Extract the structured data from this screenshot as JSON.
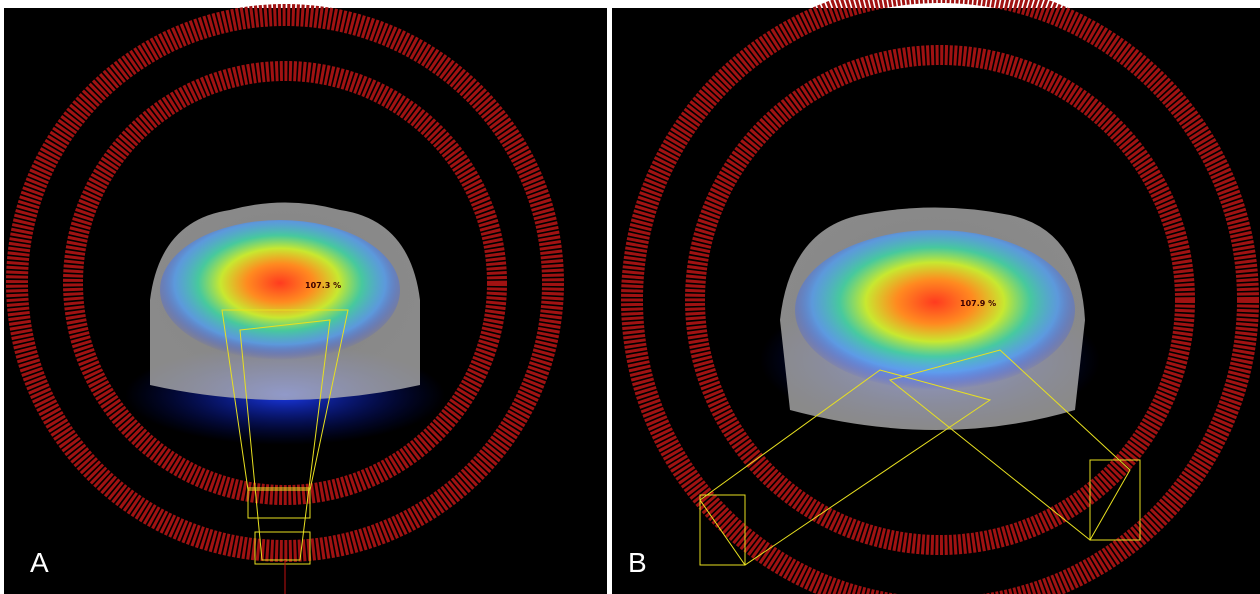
{
  "panels": [
    {
      "label": "A",
      "dose_label": "107.3 %"
    },
    {
      "label": "B",
      "dose_label": "107.9 %"
    }
  ]
}
